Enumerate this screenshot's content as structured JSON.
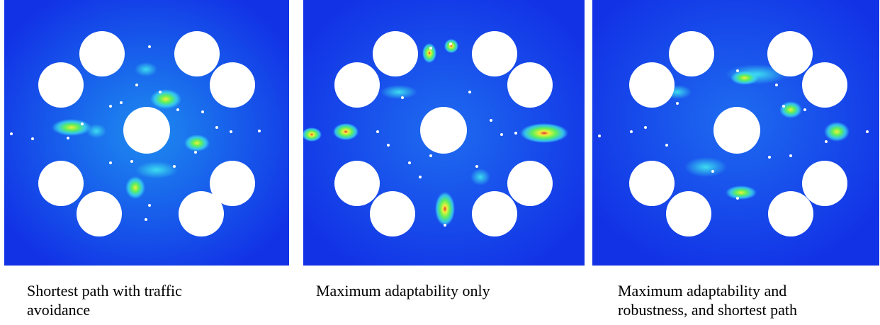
{
  "figure": {
    "colors": {
      "field_base": "#1232e6",
      "field_light": "#1e8cf0",
      "hotspot_cyan": "#3cdcf0",
      "hotspot_green": "#5ef05a",
      "hotspot_yellow": "#f0f03c",
      "hotspot_red": "#e83030",
      "obstacle": "#ffffff",
      "agent_dot": "#ffffff"
    },
    "panels": [
      {
        "caption": "Shortest path with traffic avoidance"
      },
      {
        "caption": "Maximum adaptability only"
      },
      {
        "caption": "Maximum adaptability and robustness, and shortest path"
      }
    ]
  }
}
